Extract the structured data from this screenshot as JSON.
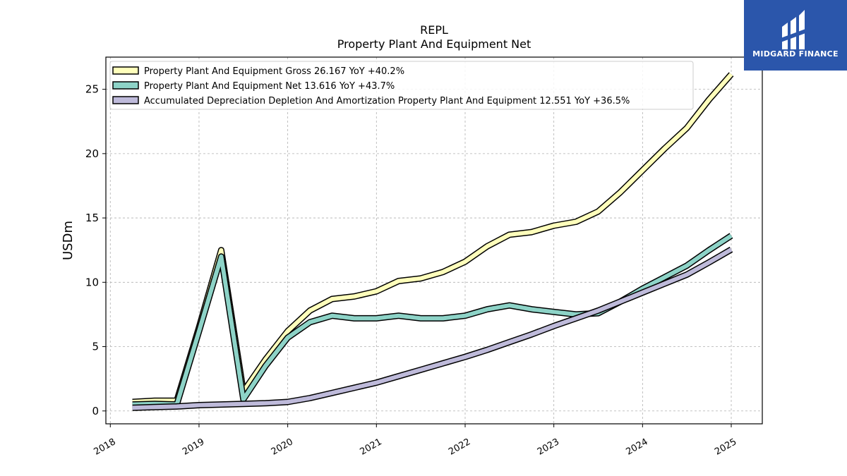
{
  "brand": {
    "name": "MIDGARD FINANCE",
    "bg_color": "#2b56ab"
  },
  "chart_data": {
    "type": "line",
    "title": "REPL",
    "subtitle": "Property Plant And Equipment Net",
    "ylabel": "USDm",
    "xlabel": "",
    "ylim": [
      -1,
      27.5
    ],
    "xlim": [
      2017.95,
      2025.35
    ],
    "yticks": [
      0,
      5,
      10,
      15,
      20,
      25
    ],
    "xticks": [
      2018,
      2019,
      2020,
      2021,
      2022,
      2023,
      2024,
      2025
    ],
    "xtick_labels": [
      "2018",
      "2019",
      "2020",
      "2021",
      "2022",
      "2023",
      "2024",
      "2025"
    ],
    "grid": true,
    "legend_position": "top-left",
    "series": [
      {
        "name": "Property Plant And Equipment Gross",
        "legend_label": "Property Plant And Equipment Gross  26.167 YoY +40.2%",
        "color": "#ffffbb",
        "x": [
          2018.25,
          2018.5,
          2018.75,
          2019.0,
          2019.25,
          2019.5,
          2019.75,
          2020.0,
          2020.25,
          2020.5,
          2020.75,
          2021.0,
          2021.25,
          2021.5,
          2021.75,
          2022.0,
          2022.25,
          2022.5,
          2022.75,
          2023.0,
          2023.25,
          2023.5,
          2023.75,
          2024.0,
          2024.25,
          2024.5,
          2024.75,
          2025.0
        ],
        "values": [
          0.7,
          0.8,
          0.8,
          6.5,
          12.5,
          1.5,
          4.0,
          6.2,
          7.8,
          8.7,
          8.9,
          9.3,
          10.1,
          10.3,
          10.8,
          11.6,
          12.8,
          13.7,
          13.9,
          14.4,
          14.7,
          15.5,
          17.0,
          18.7,
          20.4,
          22.0,
          24.2,
          26.17
        ]
      },
      {
        "name": "Property Plant And Equipment Net",
        "legend_label": "Property Plant And Equipment Net  13.616 YoY +43.7%",
        "color": "#8dd3c7",
        "x": [
          2018.25,
          2018.5,
          2018.75,
          2019.0,
          2019.25,
          2019.5,
          2019.75,
          2020.0,
          2020.25,
          2020.5,
          2020.75,
          2021.0,
          2021.25,
          2021.5,
          2021.75,
          2022.0,
          2022.25,
          2022.5,
          2022.75,
          2023.0,
          2023.25,
          2023.5,
          2023.75,
          2024.0,
          2024.25,
          2024.5,
          2024.75,
          2025.0
        ],
        "values": [
          0.5,
          0.55,
          0.5,
          6.2,
          12.0,
          0.9,
          3.5,
          5.7,
          6.9,
          7.4,
          7.2,
          7.2,
          7.4,
          7.2,
          7.2,
          7.4,
          7.9,
          8.2,
          7.9,
          7.7,
          7.5,
          7.6,
          8.5,
          9.5,
          10.4,
          11.3,
          12.5,
          13.62
        ]
      },
      {
        "name": "Accumulated Depreciation Depletion And Amortization Property Plant And Equipment",
        "legend_label": "Accumulated Depreciation Depletion And Amortization Property Plant And Equipment  12.551 YoY +36.5%",
        "color": "#bebada",
        "x": [
          2018.25,
          2018.5,
          2018.75,
          2019.0,
          2019.25,
          2019.5,
          2019.75,
          2020.0,
          2020.25,
          2020.5,
          2020.75,
          2021.0,
          2021.25,
          2021.5,
          2021.75,
          2022.0,
          2022.25,
          2022.5,
          2022.75,
          2023.0,
          2023.25,
          2023.5,
          2023.75,
          2024.0,
          2024.25,
          2024.5,
          2024.75,
          2025.0
        ],
        "values": [
          0.25,
          0.3,
          0.35,
          0.45,
          0.5,
          0.55,
          0.6,
          0.7,
          1.0,
          1.4,
          1.8,
          2.2,
          2.7,
          3.2,
          3.7,
          4.2,
          4.75,
          5.35,
          5.95,
          6.6,
          7.2,
          7.8,
          8.5,
          9.2,
          9.9,
          10.6,
          11.55,
          12.55
        ]
      }
    ]
  }
}
